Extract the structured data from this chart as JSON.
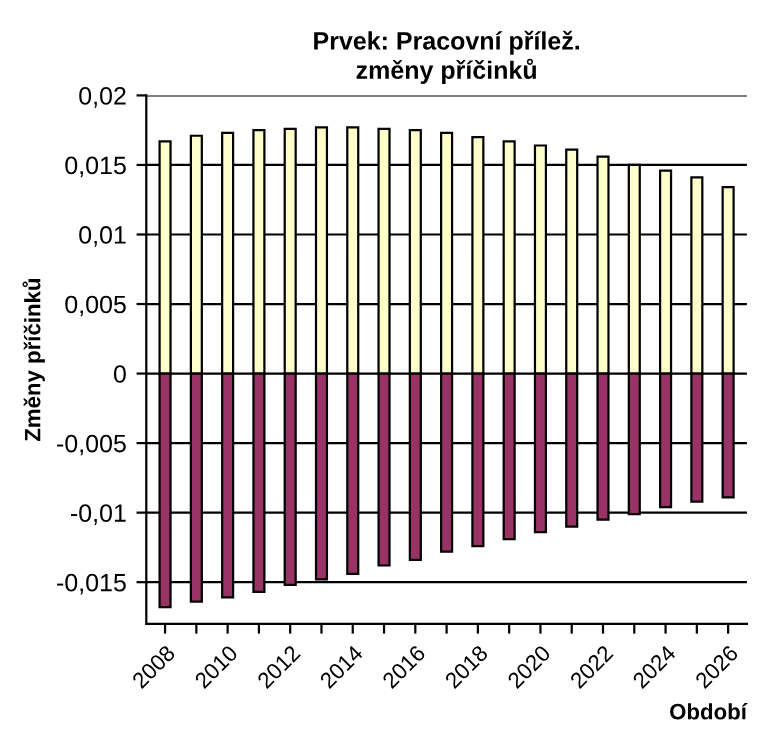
{
  "chart_data": {
    "type": "bar",
    "title": "Prvek: Pracovní přílež.\nzměny příčinků",
    "ylabel": "Změny příčinků",
    "xlabel": "Období",
    "categories": [
      "2008",
      null,
      "2010",
      null,
      "2012",
      null,
      "2014",
      null,
      "2016",
      null,
      "2018",
      null,
      "2020",
      null,
      "2022",
      null,
      "2024",
      null,
      "2026"
    ],
    "series": [
      {
        "color": "#ffffcc",
        "values": [
          0.0167,
          0.0171,
          0.0173,
          0.0175,
          0.0176,
          0.0177,
          0.0177,
          0.0176,
          0.0175,
          0.0173,
          0.017,
          0.0167,
          0.0164,
          0.0161,
          0.0156,
          0.015,
          0.0146,
          0.0141,
          0.0134
        ]
      },
      {
        "color": "#993366",
        "values": [
          -0.0168,
          -0.0164,
          -0.0161,
          -0.0157,
          -0.0152,
          -0.0148,
          -0.0144,
          -0.0138,
          -0.0134,
          -0.0128,
          -0.0124,
          -0.0119,
          -0.0114,
          -0.011,
          -0.0105,
          -0.0101,
          -0.0096,
          -0.0092,
          -0.0089
        ]
      }
    ],
    "stacked": true,
    "ylim": [
      -0.018,
      0.02
    ],
    "yticks": [
      {
        "value": -0.015,
        "label": "-0,015"
      },
      {
        "value": -0.01,
        "label": "-0,01"
      },
      {
        "value": -0.005,
        "label": "-0,005"
      },
      0,
      {
        "value": 0.005,
        "label": "0,005"
      },
      {
        "value": 0.01,
        "label": "0,01"
      },
      {
        "value": 0.015,
        "label": "0,015"
      },
      {
        "value": 0.02,
        "label": "0,02"
      }
    ],
    "grid": "y",
    "legend": false
  }
}
